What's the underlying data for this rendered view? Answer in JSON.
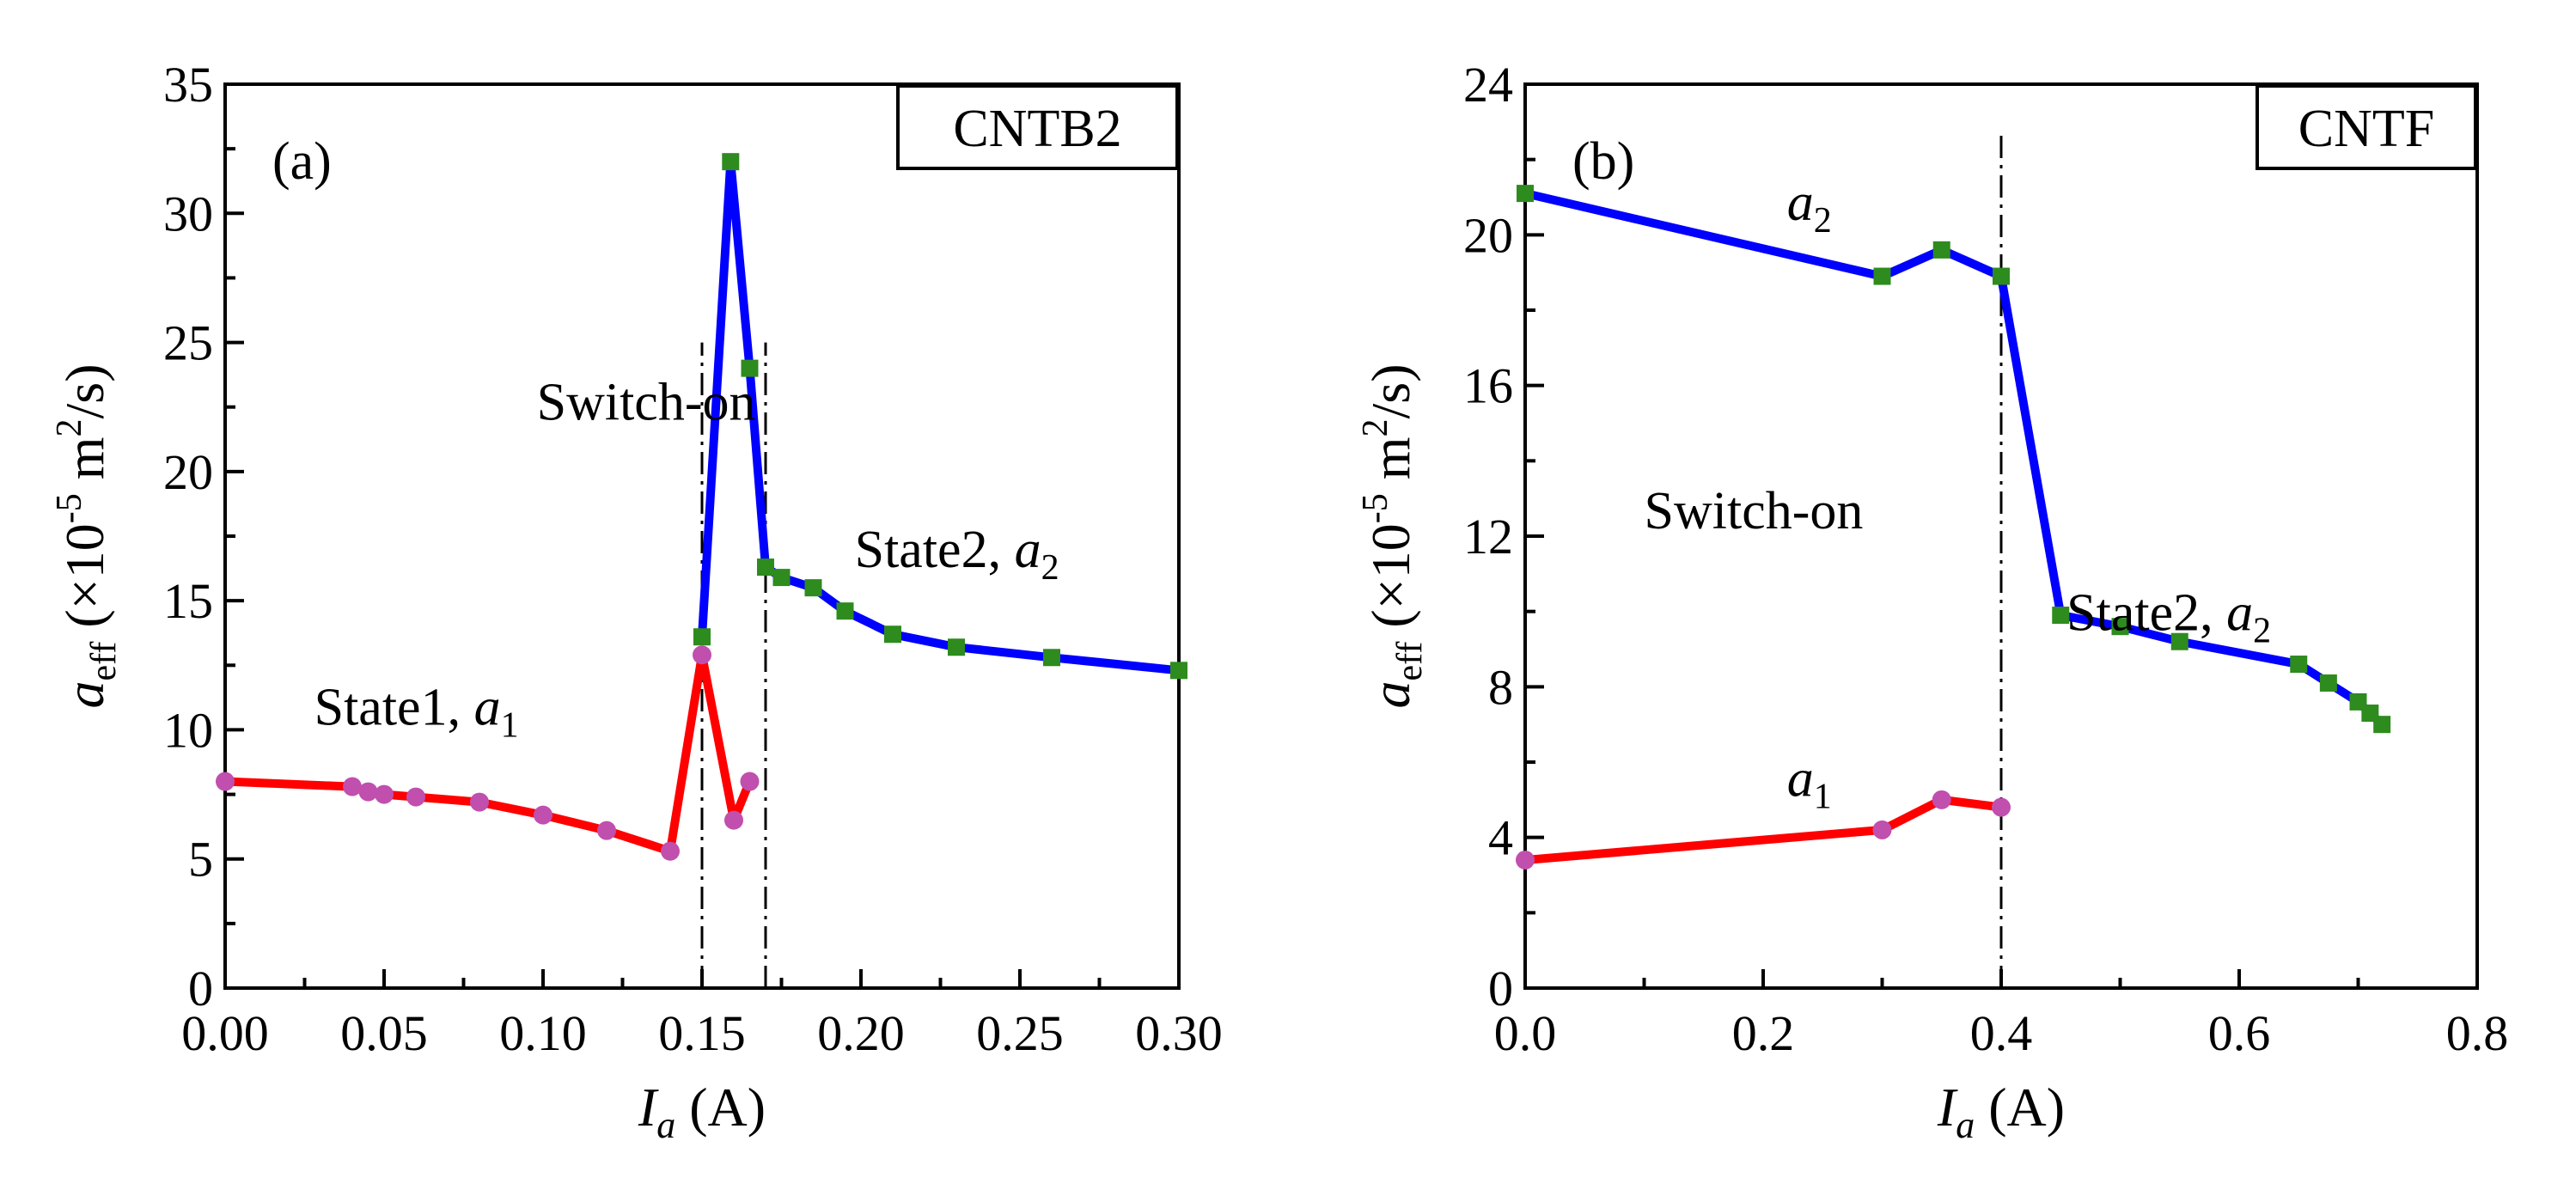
{
  "chart_data": [
    {
      "type": "line",
      "panel": "(a)",
      "label_box": "CNTB2",
      "xlabel": "I_a (A)",
      "xlabel_var": "I",
      "xlabel_sub": "a",
      "xlabel_unit": " (A)",
      "ylabel": "a_eff (×10^-5 m^2/s)",
      "ylabel_var": "a",
      "ylabel_sub": "eff",
      "ylabel_unit_pre": " (×10",
      "ylabel_unit_exp": "-5",
      "ylabel_unit_mid": " m",
      "ylabel_unit_exp2": "2",
      "ylabel_unit_post": "/s)",
      "xlim": [
        0.0,
        0.3
      ],
      "ylim": [
        0,
        35
      ],
      "xticks": [
        "0.00",
        "0.05",
        "0.10",
        "0.15",
        "0.20",
        "0.25",
        "0.30"
      ],
      "xtick_values": [
        0.0,
        0.05,
        0.1,
        0.15,
        0.2,
        0.25,
        0.3
      ],
      "yticks": [
        "0",
        "5",
        "10",
        "15",
        "20",
        "25",
        "30",
        "35"
      ],
      "ytick_values": [
        0,
        5,
        10,
        15,
        20,
        25,
        30,
        35
      ],
      "vlines": [
        {
          "x": 0.15,
          "y_top": 25
        },
        {
          "x": 0.17,
          "y_top": 25
        }
      ],
      "series": [
        {
          "name": "a1",
          "line_color": "#ff0000",
          "marker_color": "#c04fae",
          "marker": "circle",
          "x": [
            0.0,
            0.04,
            0.045,
            0.05,
            0.06,
            0.08,
            0.1,
            0.12,
            0.14,
            0.15,
            0.16,
            0.165
          ],
          "y": [
            8.0,
            7.8,
            7.6,
            7.5,
            7.4,
            7.2,
            6.7,
            6.1,
            5.3,
            12.9,
            6.5,
            8.0
          ]
        },
        {
          "name": "a2",
          "line_color": "#0000ff",
          "marker_color": "#2e8b1e",
          "marker": "square",
          "x": [
            0.15,
            0.159,
            0.165,
            0.17,
            0.175,
            0.185,
            0.195,
            0.21,
            0.23,
            0.26,
            0.3
          ],
          "y": [
            13.6,
            32.0,
            24.0,
            16.3,
            15.9,
            15.5,
            14.6,
            13.7,
            13.2,
            12.8,
            12.3
          ]
        }
      ],
      "annotations": [
        {
          "text": "Switch-on",
          "x": 0.098,
          "y": 22.0
        },
        {
          "text": "State1, ",
          "italic": "a",
          "sub": "1",
          "x": 0.028,
          "y": 10.2
        },
        {
          "text": "State2, ",
          "italic": "a",
          "sub": "2",
          "x": 0.198,
          "y": 16.3
        }
      ]
    },
    {
      "type": "line",
      "panel": "(b)",
      "label_box": "CNTF",
      "xlabel": "I_a (A)",
      "xlabel_var": "I",
      "xlabel_sub": "a",
      "xlabel_unit": " (A)",
      "ylabel": "a_eff (×10^-5 m^2/s)",
      "ylabel_var": "a",
      "ylabel_sub": "eff",
      "ylabel_unit_pre": " (×10",
      "ylabel_unit_exp": "-5",
      "ylabel_unit_mid": " m",
      "ylabel_unit_exp2": "2",
      "ylabel_unit_post": "/s)",
      "xlim": [
        0.0,
        0.8
      ],
      "ylim": [
        0,
        24
      ],
      "xticks": [
        "0.0",
        "0.2",
        "0.4",
        "0.6",
        "0.8"
      ],
      "xtick_values": [
        0.0,
        0.2,
        0.4,
        0.6,
        0.8
      ],
      "yticks": [
        "0",
        "4",
        "8",
        "12",
        "16",
        "20",
        "24"
      ],
      "ytick_values": [
        0,
        4,
        8,
        12,
        16,
        20,
        24
      ],
      "vlines": [
        {
          "x": 0.4,
          "y_top": 22.7
        }
      ],
      "series": [
        {
          "name": "a1",
          "line_color": "#ff0000",
          "marker_color": "#c04fae",
          "marker": "circle",
          "x": [
            0.0,
            0.3,
            0.35,
            0.4
          ],
          "y": [
            3.4,
            4.2,
            5.0,
            4.8
          ]
        },
        {
          "name": "a2",
          "line_color": "#0000ff",
          "marker_color": "#2e8b1e",
          "marker": "square",
          "x": [
            0.0,
            0.3,
            0.35,
            0.4,
            0.45,
            0.5,
            0.55,
            0.65,
            0.675,
            0.7,
            0.71,
            0.72
          ],
          "y": [
            21.1,
            18.9,
            19.6,
            18.9,
            9.9,
            9.6,
            9.2,
            8.6,
            8.1,
            7.6,
            7.3,
            7.0
          ]
        }
      ],
      "annotations": [
        {
          "text": "",
          "italic": "a",
          "sub": "2",
          "x": 0.22,
          "y": 20.4
        },
        {
          "text": "",
          "italic": "a",
          "sub": "1",
          "x": 0.22,
          "y": 5.1
        },
        {
          "text": "Switch-on",
          "x": 0.1,
          "y": 12.2
        },
        {
          "text": "State2, ",
          "italic": "a",
          "sub": "2",
          "x": 0.455,
          "y": 9.5
        }
      ]
    }
  ]
}
